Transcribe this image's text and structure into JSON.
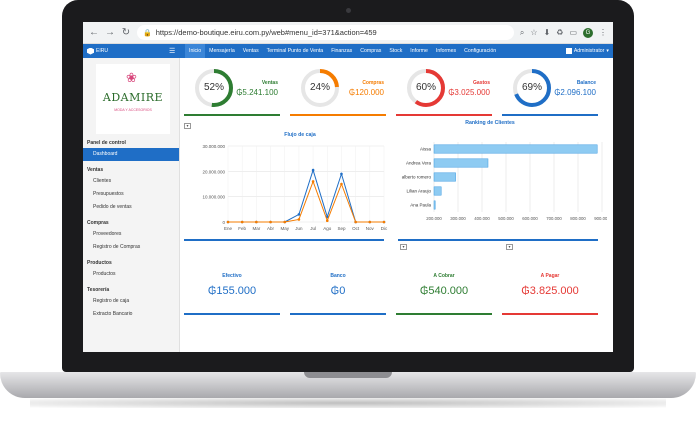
{
  "browser": {
    "url": "https://demo-boutique.eiru.com.py/web#menu_id=371&action=459",
    "profile_initial": "G"
  },
  "app": {
    "brand": "EIRU",
    "menu": [
      "Inicio",
      "Mensajería",
      "Ventas",
      "Terminal Punto de Venta",
      "Finanzas",
      "Compras",
      "Stock",
      "Informe",
      "Informes",
      "Configuración"
    ],
    "active_menu": "Inicio",
    "user": "Administrator"
  },
  "logo": {
    "name": "ADAMIRE",
    "tagline": "MODA Y ACCESORIOS"
  },
  "sidebar": {
    "sections": [
      {
        "title": "Panel de control",
        "items": [
          "Dashboard"
        ]
      },
      {
        "title": "Ventas",
        "items": [
          "Clientes",
          "Presupuestos",
          "Pedido de ventas"
        ]
      },
      {
        "title": "Compras",
        "items": [
          "Proveedores",
          "Registro de Compras"
        ]
      },
      {
        "title": "Productos",
        "items": [
          "Productos"
        ]
      },
      {
        "title": "Tesorería",
        "items": [
          "Registro de caja",
          "Extracto Bancario"
        ]
      }
    ],
    "active_item": "Dashboard"
  },
  "kpis": [
    {
      "title": "Ventas",
      "value": "₲5.241.100",
      "percent": 52,
      "percent_label": "52%",
      "color": "#2e7d32"
    },
    {
      "title": "Compras",
      "value": "₲120.000",
      "percent": 24,
      "percent_label": "24%",
      "color": "#f57c00"
    },
    {
      "title": "Gastos",
      "value": "₲3.025.000",
      "percent": 60,
      "percent_label": "60%",
      "color": "#e53935"
    },
    {
      "title": "Balance",
      "value": "₲2.096.100",
      "percent": 69,
      "percent_label": "69%",
      "color": "#1f6ec6"
    }
  ],
  "chart_data": [
    {
      "type": "line",
      "title": "Flujo de caja",
      "categories": [
        "Ene",
        "Feb",
        "Mar",
        "Abr",
        "May",
        "Jun",
        "Jul",
        "Ago",
        "Sep",
        "Oct",
        "Nov",
        "Dic"
      ],
      "series": [
        {
          "values": [
            0,
            0,
            0,
            0,
            0,
            3000000,
            20500000,
            2000000,
            19000000,
            0,
            0,
            0
          ],
          "color": "#1f6ec6"
        },
        {
          "values": [
            0,
            0,
            0,
            0,
            0,
            1000000,
            16000000,
            500000,
            15000000,
            0,
            0,
            0
          ],
          "color": "#f57c00"
        }
      ],
      "yticks": [
        "0",
        "10.000.000",
        "20.000.000",
        "30.000.000"
      ],
      "ylim": [
        0,
        30000000
      ],
      "grid": true
    },
    {
      "type": "bar",
      "orientation": "horizontal",
      "title": "Ranking de Clientes",
      "categories": [
        "Aissa",
        "Andrea Vera",
        "alberto romero",
        "Lilian Araujo",
        "Ana Paula"
      ],
      "values": [
        880000,
        425000,
        290000,
        230000,
        205000
      ],
      "xticks": [
        "200.000",
        "300.000",
        "400.000",
        "500.000",
        "600.000",
        "700.000",
        "800.000",
        "900.000"
      ],
      "xlim": [
        200000,
        900000
      ],
      "grid": true
    }
  ],
  "totals": [
    {
      "title": "Efectivo",
      "value": "₲155.000",
      "color": "#1f6ec6"
    },
    {
      "title": "Banco",
      "value": "₲0",
      "color": "#1f6ec6"
    },
    {
      "title": "A Cobrar",
      "value": "₲540.000",
      "color": "#2e7d32"
    },
    {
      "title": "A Pagar",
      "value": "₲3.825.000",
      "color": "#e53935"
    }
  ]
}
